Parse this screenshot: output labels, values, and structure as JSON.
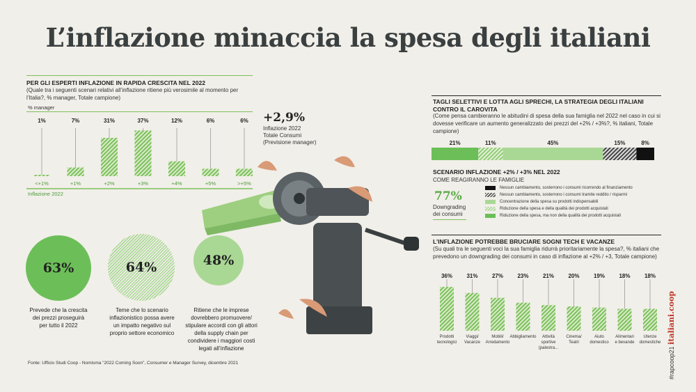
{
  "title": "L’inflazione minaccia la  spesa degli italiani",
  "left_chart": {
    "header": "PER GLI ESPERTI INFLAZIONE IN RAPIDA CRESCITA NEL 2022",
    "subtitle": "(Quale tra i seguenti scenari relativi all’inflazione ritiene più verosimile al momento per l’Italia?, % manager, Totale campione)",
    "unit_label": "% manager",
    "xlabel": "Inflazione 2022",
    "highlight_value": "+2,9%",
    "highlight_text_1": "Inflazione 2022",
    "highlight_text_2": "Totale Consumi",
    "highlight_text_3": "(Previsione manager)"
  },
  "circles": [
    {
      "value": "63%",
      "text": "Prevede che la crescita dei prezzi proseguirà per tutto il 2022",
      "color": "#6cbf58"
    },
    {
      "value": "64%",
      "text": "Teme che lo scenario inflazionistico possa avere un impatto negativo sul proprio settore economico",
      "color": "#a9d895"
    },
    {
      "value": "48%",
      "text": "Ritiene che le imprese dovrebbero promuovere/ stipulare accordi con gli attori della supply chain per condividere i maggiori costi legati all’inflazione",
      "color": "#a9d895"
    }
  ],
  "source": "Fonte: Ufficio Studi Coop - Nomisma \"2022 Coming Soon\", Consumer e Manager Survey, dicembre 2021",
  "right_top": {
    "header": "TAGLI SELETTIVI E LOTTA AGLI SPRECHI, LA STRATEGIA DEGLI ITALIANI CONTRO IL CAROVITA",
    "subtitle": "(Come pensa cambieranno le abitudini di spesa della sua famiglia nel 2022 nel caso in cui si dovesse verificare un aumento generalizzato dei prezzi del +2% / +3%?, % italiani, Totale campione)",
    "scenario_header": "SCENARIO INFLAZIONE +2% / +3% NEL 2022",
    "scenario_sub": "COME REAGIRANNO LE FAMIGLIE",
    "big_value": "77%",
    "big_text_1": "Downgrading",
    "big_text_2": "dei consumi"
  },
  "right_bottom": {
    "header": "L’INFLAZIONE POTREBBE BRUCIARE SOGNI TECH E VACANZE",
    "subtitle": "(Su quali tra le seguenti voci la sua famiglia ridurrà prioritariamente la spesa?, % italiani che prevedono un downgrading dei consumi in caso di inflazione al +2% / +3, Totale campione)"
  },
  "side_text": {
    "hashtag": "#rapcoop21",
    "brand": "italiani.coop"
  },
  "colors": {
    "green": "#6cbf58",
    "light_green": "#a9d895",
    "black": "#111111",
    "line": "#7cbf5c"
  },
  "chart_data": [
    {
      "type": "bar",
      "title": "PER GLI ESPERTI INFLAZIONE IN RAPIDA CRESCITA NEL 2022",
      "ylabel": "% manager",
      "xlabel": "Inflazione 2022",
      "categories": [
        "<+1%",
        "+1%",
        "+2%",
        "+3%",
        "+4%",
        "+5%",
        ">+5%"
      ],
      "values": [
        1,
        7,
        31,
        37,
        12,
        6,
        6
      ],
      "value_labels": [
        "1%",
        "7%",
        "31%",
        "37%",
        "12%",
        "6%",
        "6%"
      ],
      "ylim": [
        0,
        40
      ],
      "pattern": "hatched-green",
      "grid": false
    },
    {
      "type": "bar",
      "orientation": "stacked-horizontal",
      "title": "TAGLI SELETTIVI E LOTTA AGLI SPRECHI, LA STRATEGIA DEGLI ITALIANI CONTRO IL CAROVITA",
      "series": [
        {
          "name": "Riduzione della spesa, ma non della qualità dei prodotti acquistati",
          "value": 21,
          "label": "21%",
          "color": "#6cbf58",
          "pattern": "solid"
        },
        {
          "name": "Riduzione della spesa e della qualità dei prodotti acquistati",
          "value": 11,
          "label": "11%",
          "color": "#a9d895",
          "pattern": "hatched"
        },
        {
          "name": "Concentrazione della spesa su prodotti indispensabili",
          "value": 45,
          "label": "45%",
          "color": "#a9d895",
          "pattern": "solid"
        },
        {
          "name": "Nessun cambiamento, sosterrono i consumi  tramite reddito / risparmi",
          "value": 15,
          "label": "15%",
          "color": "#555555",
          "pattern": "hatched"
        },
        {
          "name": "Nessun cambiamento, sosterrono i consumi  ricorrendo al finanziamento",
          "value": 8,
          "label": "8%",
          "color": "#111111",
          "pattern": "solid"
        }
      ],
      "legend_order": [
        4,
        3,
        2,
        1,
        0
      ],
      "legend": "right"
    },
    {
      "type": "bar",
      "title": "L’INFLAZIONE POTREBBE BRUCIARE SOGNI TECH E VACANZE",
      "categories": [
        [
          "Prodotti",
          "tecnologici"
        ],
        [
          "Viaggi/",
          "Vacanze"
        ],
        [
          "Mobili/",
          "Arredamento"
        ],
        [
          "Abbigliamento"
        ],
        [
          "Attività",
          "sportive",
          "(palestra..."
        ],
        [
          "Cinema/",
          "Teatri"
        ],
        [
          "Aiuto",
          "domestico"
        ],
        [
          "Alimentari",
          "e bevande"
        ],
        [
          "Utenze",
          "domestiche"
        ]
      ],
      "values": [
        36,
        31,
        27,
        23,
        21,
        20,
        19,
        18,
        18
      ],
      "value_labels": [
        "36%",
        "31%",
        "27%",
        "23%",
        "21%",
        "20%",
        "19%",
        "18%",
        "18%"
      ],
      "ylim": [
        0,
        40
      ],
      "pattern": "hatched-green",
      "grid": false
    }
  ]
}
